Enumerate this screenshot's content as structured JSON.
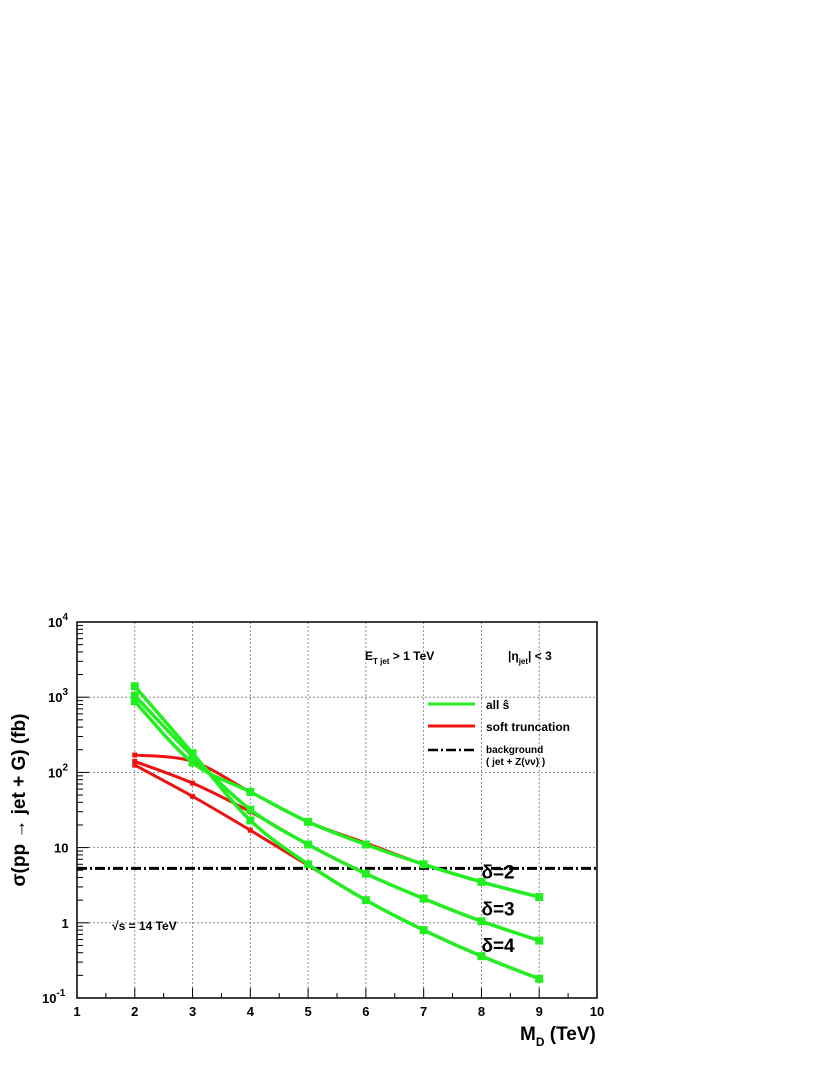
{
  "chart_data": {
    "type": "line",
    "title": "",
    "xlabel": "M",
    "xlabel_sub": "D",
    "xlabel_unit": " (TeV)",
    "ylabel": "σ(pp → jet + G)  (fb)",
    "x_scale": "linear",
    "y_scale": "log",
    "xlim": [
      1,
      10
    ],
    "ylim": [
      0.1,
      10000
    ],
    "grid": true,
    "x_ticks": [
      1,
      2,
      3,
      4,
      5,
      6,
      7,
      8,
      9,
      10
    ],
    "y_tick_labels": [
      {
        "value": 10000,
        "base": "10",
        "exp": "4"
      },
      {
        "value": 1000,
        "base": "10",
        "exp": "3"
      },
      {
        "value": 100,
        "base": "10",
        "exp": "2"
      },
      {
        "value": 10,
        "base": "10",
        "exp": ""
      },
      {
        "value": 1,
        "base": "1",
        "exp": ""
      },
      {
        "value": 0.1,
        "base": "10",
        "exp": "-1"
      }
    ],
    "annotations": {
      "et_cut": {
        "main": "E",
        "sub": "T jet",
        "rest": " > 1 TeV"
      },
      "eta_cut": {
        "pre": "|η",
        "sub": "jet",
        "rest": "| < 3"
      },
      "sqrt_s": "√s = 14 TeV",
      "delta_labels": [
        {
          "text": "δ=2",
          "x": 8.0,
          "y": 3.9
        },
        {
          "text": "δ=3",
          "x": 8.0,
          "y": 1.25
        },
        {
          "text": "δ=4",
          "x": 8.0,
          "y": 0.41
        }
      ]
    },
    "legend": {
      "placement": "top-right",
      "entries": [
        {
          "label": "all ŝ",
          "color": "#22ee22",
          "style": "solid"
        },
        {
          "label": "soft truncation",
          "color": "#ee1111",
          "style": "solid"
        },
        {
          "label": "background",
          "label2": "( jet + Z(νν) )",
          "color": "#000000",
          "style": "dash-dot"
        }
      ]
    },
    "background_level": 5.3,
    "series": [
      {
        "group": "all ŝ",
        "delta": "δ=2",
        "x": [
          2,
          3,
          4,
          5,
          6,
          7,
          8,
          9
        ],
        "y": [
          880,
          135,
          55,
          22,
          11,
          6,
          3.5,
          2.2
        ]
      },
      {
        "group": "all ŝ",
        "delta": "δ=3",
        "x": [
          2,
          3,
          4,
          5,
          6,
          7,
          8,
          9
        ],
        "y": [
          1050,
          165,
          32,
          11,
          4.5,
          2.1,
          1.05,
          0.58
        ]
      },
      {
        "group": "all ŝ",
        "delta": "δ=4",
        "x": [
          2,
          3,
          4,
          5,
          6,
          7,
          8,
          9
        ],
        "y": [
          1400,
          180,
          23,
          6,
          2,
          0.8,
          0.36,
          0.18
        ]
      },
      {
        "group": "soft truncation",
        "delta": "δ=2",
        "x": [
          2,
          3,
          4,
          5,
          6,
          7,
          8,
          9
        ],
        "y": [
          170,
          140,
          55,
          22,
          11.5,
          6,
          3.5,
          2.2
        ]
      },
      {
        "group": "soft truncation",
        "delta": "δ=3",
        "x": [
          2,
          3,
          4,
          5,
          6,
          7,
          8,
          9
        ],
        "y": [
          140,
          72,
          30,
          11,
          4.5,
          2.1,
          1.05,
          0.58
        ]
      },
      {
        "group": "soft truncation",
        "delta": "δ=4",
        "x": [
          2,
          3,
          4,
          5,
          6,
          7,
          8,
          9
        ],
        "y": [
          125,
          48,
          17,
          5.8,
          2,
          0.8,
          0.36,
          0.18
        ]
      }
    ]
  }
}
